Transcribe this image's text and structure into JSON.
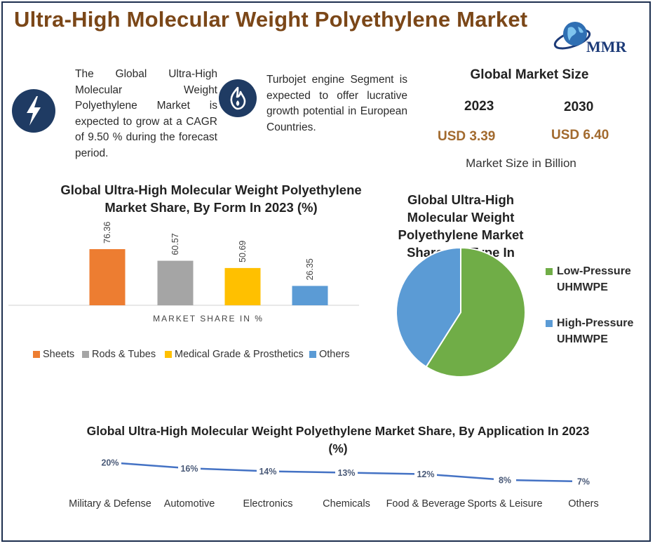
{
  "header": {
    "title": "Ultra-High Molecular Weight Polyethylene Market",
    "logo_text": "MMR"
  },
  "icons": {
    "cagr_icon": "lightning-bolt-icon",
    "segment_icon": "flame-icon",
    "logo_icon": "globe-icon"
  },
  "colors": {
    "title": "#7b4718",
    "icon_circle": "#1f3b63",
    "usd_values": "#a26a2e"
  },
  "cagr_text": "The Global Ultra-High Molecular Weight Polyethylene Market is expected to grow at a CAGR of 9.50 % during the forecast period.",
  "segment_text": "Turbojet engine Segment is expected to offer lucrative growth potential in European Countries.",
  "market_size": {
    "title": "Global Market Size",
    "year_1": "2023",
    "year_2": "2030",
    "value_1": "USD 3.39",
    "value_2": "USD 6.40",
    "note": "Market Size in Billion"
  },
  "chart_data": [
    {
      "type": "bar",
      "title": "Global Ultra-High Molecular Weight Polyethylene Market Share, By Form In 2023 (%)",
      "xlabel": "MARKET SHARE IN %",
      "series": [
        {
          "name": "Sheets",
          "values": [
            76.36
          ],
          "color": "#ed7d31"
        },
        {
          "name": "Rods & Tubes",
          "values": [
            60.57
          ],
          "color": "#a5a5a5"
        },
        {
          "name": "Medical Grade & Prosthetics",
          "values": [
            50.69
          ],
          "color": "#ffc000"
        },
        {
          "name": "Others",
          "values": [
            26.35
          ],
          "color": "#5b9bd5"
        }
      ],
      "value_labels": [
        "76.36",
        "60.57",
        "50.69",
        "26.35"
      ],
      "legend_position": "bottom",
      "grid": false
    },
    {
      "type": "pie",
      "title": "Global Ultra-High Molecular Weight Polyethylene Market Share, By Type In 2023 (%)",
      "slices": [
        {
          "label": "Low-Pressure UHMWPE",
          "value": 59,
          "color": "#70ad47"
        },
        {
          "label": "High-Pressure UHMWPE",
          "value": 41,
          "color": "#5b9bd5"
        }
      ],
      "legend_position": "right"
    },
    {
      "type": "line",
      "title": "Global Ultra-High Molecular Weight Polyethylene Market  Share, By Application In 2023 (%)",
      "categories": [
        "Military & Defense",
        "Automotive",
        "Electronics",
        "Chemicals",
        "Food & Beverage",
        "Sports & Leisure",
        "Others"
      ],
      "values": [
        20,
        16,
        14,
        13,
        12,
        8,
        7
      ],
      "value_labels": [
        "20%",
        "16%",
        "14%",
        "13%",
        "12%",
        "8%",
        "7%"
      ],
      "line_color": "#4472c4",
      "grid": false
    }
  ]
}
